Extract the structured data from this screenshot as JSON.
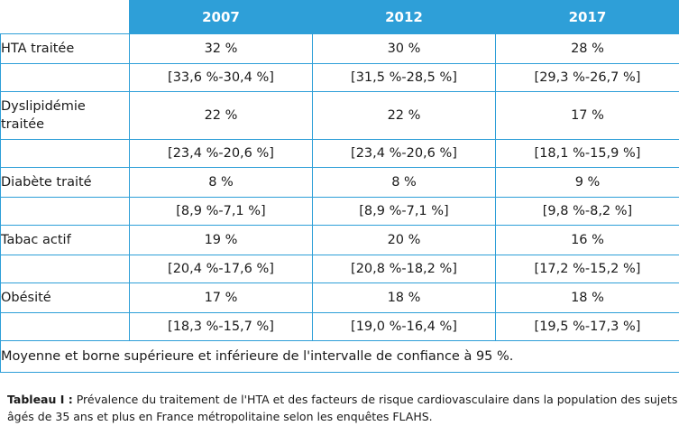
{
  "table": {
    "headers": [
      "2007",
      "2012",
      "2017"
    ],
    "rows": [
      {
        "label": "HTA traitée",
        "values": [
          "32 %",
          "30 %",
          "28 %"
        ],
        "ci": [
          "[33,6 %-30,4 %]",
          "[31,5 %-28,5 %]",
          "[29,3 %-26,7 %]"
        ]
      },
      {
        "label": "Dyslipidémie traitée",
        "values": [
          "22 %",
          "22 %",
          "17 %"
        ],
        "ci": [
          "[23,4 %-20,6 %]",
          "[23,4 %-20,6 %]",
          "[18,1 %-15,9 %]"
        ]
      },
      {
        "label": "Diabète traité",
        "values": [
          "8 %",
          "8 %",
          "9 %"
        ],
        "ci": [
          "[8,9 %-7,1 %]",
          "[8,9 %-7,1 %]",
          "[9,8 %-8,2 %]"
        ]
      },
      {
        "label": "Tabac actif",
        "values": [
          "19 %",
          "20 %",
          "16 %"
        ],
        "ci": [
          "[20,4 %-17,6 %]",
          "[20,8 %-18,2 %]",
          "[17,2 %-15,2 %]"
        ]
      },
      {
        "label": "Obésité",
        "values": [
          "17 %",
          "18 %",
          "18 %"
        ],
        "ci": [
          "[18,3 %-15,7 %]",
          "[19,0 %-16,4 %]",
          "[19,5 %-17,3 %]"
        ]
      }
    ],
    "footnote": "Moyenne et borne supérieure et inférieure de l'intervalle de confiance à 95 %."
  },
  "caption": {
    "label": "Tableau I :",
    "text": " Prévalence du traitement de l'HTA et des facteurs de risque cardiovasculaire dans la population des sujets âgés de 35 ans et plus en France métropolitaine selon les enquêtes FLAHS."
  },
  "colors": {
    "accent": "#2e9fd8"
  }
}
